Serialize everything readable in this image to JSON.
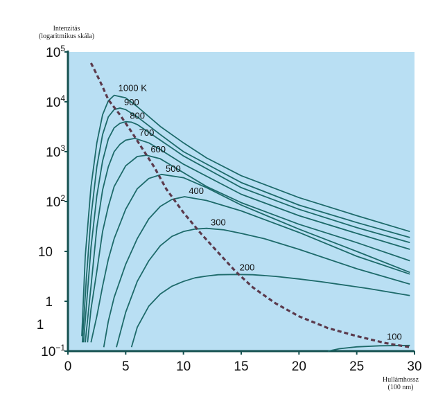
{
  "chart_data": {
    "type": "line",
    "ylabel_lines": [
      "Intenzitás",
      "(logaritmikus skála)"
    ],
    "xlabel_lines": [
      "Hullámhossz",
      "(100 nm)"
    ],
    "xlim": [
      0,
      30
    ],
    "ylim": [
      0.1,
      100000
    ],
    "yscale": "log",
    "grid": false,
    "x_ticks": [
      "0",
      "5",
      "10",
      "15",
      "20",
      "25",
      "30"
    ],
    "y_ticks": [
      {
        "value": 100000,
        "base": "10",
        "exp": "5"
      },
      {
        "value": 10000,
        "base": "10",
        "exp": "4"
      },
      {
        "value": 1000,
        "base": "10",
        "exp": "3"
      },
      {
        "value": 100,
        "base": "10",
        "exp": "2"
      },
      {
        "value": 10,
        "base": "10",
        "exp": ""
      },
      {
        "value": 1,
        "base": "1",
        "exp": ""
      },
      {
        "value": 0.1,
        "base": "10",
        "exp": "−1"
      }
    ],
    "stray_label": "1",
    "colors": {
      "plot_bg": "#b9dff3",
      "curve": "#1d6a6a",
      "peak_line": "#5b3a4c",
      "axis": "#14504f"
    },
    "series": [
      {
        "label": "1000 K",
        "points": [
          [
            1.2,
            0.2
          ],
          [
            1.5,
            8
          ],
          [
            2,
            200
          ],
          [
            2.5,
            1500
          ],
          [
            3,
            5500
          ],
          [
            3.5,
            10500
          ],
          [
            4,
            13500
          ],
          [
            5,
            12000
          ],
          [
            6,
            8000
          ],
          [
            8,
            3200
          ],
          [
            10,
            1500
          ],
          [
            12,
            750
          ],
          [
            15,
            330
          ],
          [
            20,
            120
          ],
          [
            25,
            52
          ],
          [
            29.6,
            25
          ]
        ]
      },
      {
        "label": "900",
        "points": [
          [
            1.25,
            0.15
          ],
          [
            1.6,
            3
          ],
          [
            2,
            50
          ],
          [
            2.5,
            500
          ],
          [
            3,
            2200
          ],
          [
            3.5,
            5000
          ],
          [
            4,
            7000
          ],
          [
            4.5,
            7500
          ],
          [
            5,
            7000
          ],
          [
            6,
            5000
          ],
          [
            8,
            2200
          ],
          [
            10,
            1000
          ],
          [
            15,
            240
          ],
          [
            20,
            85
          ],
          [
            25,
            38
          ],
          [
            29.6,
            19
          ]
        ]
      },
      {
        "label": "800",
        "points": [
          [
            1.35,
            0.15
          ],
          [
            2,
            12
          ],
          [
            2.5,
            130
          ],
          [
            3,
            650
          ],
          [
            3.5,
            1800
          ],
          [
            4,
            3000
          ],
          [
            4.5,
            3700
          ],
          [
            5,
            4000
          ],
          [
            5.5,
            3900
          ],
          [
            6,
            3500
          ],
          [
            8,
            1700
          ],
          [
            10,
            820
          ],
          [
            15,
            190
          ],
          [
            20,
            70
          ],
          [
            25,
            30
          ],
          [
            29.6,
            15
          ]
        ]
      },
      {
        "label": "700",
        "points": [
          [
            1.5,
            0.15
          ],
          [
            2,
            2
          ],
          [
            2.5,
            30
          ],
          [
            3,
            170
          ],
          [
            3.5,
            500
          ],
          [
            4,
            1000
          ],
          [
            4.5,
            1400
          ],
          [
            5,
            1700
          ],
          [
            5.8,
            1850
          ],
          [
            7,
            1500
          ],
          [
            8,
            1100
          ],
          [
            10,
            560
          ],
          [
            15,
            140
          ],
          [
            20,
            52
          ],
          [
            25,
            23
          ],
          [
            29.6,
            11
          ]
        ]
      },
      {
        "label": "600",
        "points": [
          [
            1.7,
            0.15
          ],
          [
            2,
            0.7
          ],
          [
            2.5,
            4
          ],
          [
            3,
            25
          ],
          [
            3.5,
            80
          ],
          [
            4,
            200
          ],
          [
            5,
            520
          ],
          [
            6,
            800
          ],
          [
            6.8,
            850
          ],
          [
            8,
            720
          ],
          [
            10,
            380
          ],
          [
            12,
            200
          ],
          [
            15,
            95
          ],
          [
            20,
            35
          ],
          [
            25,
            15
          ],
          [
            29.6,
            6.5
          ]
        ]
      },
      {
        "label": "500",
        "points": [
          [
            2,
            0.15
          ],
          [
            2.5,
            0.5
          ],
          [
            3,
            2
          ],
          [
            3.5,
            7
          ],
          [
            4,
            18
          ],
          [
            5,
            70
          ],
          [
            6,
            180
          ],
          [
            7,
            290
          ],
          [
            8.1,
            350
          ],
          [
            10,
            300
          ],
          [
            12,
            190
          ],
          [
            15,
            85
          ],
          [
            20,
            28
          ],
          [
            25,
            10
          ],
          [
            29.6,
            3.8
          ]
        ]
      },
      {
        "label": "400",
        "points": [
          [
            3.1,
            0.12
          ],
          [
            3.5,
            0.4
          ],
          [
            4,
            1.2
          ],
          [
            5,
            5.5
          ],
          [
            6,
            18
          ],
          [
            7,
            45
          ],
          [
            8,
            80
          ],
          [
            9,
            110
          ],
          [
            10.1,
            125
          ],
          [
            12,
            105
          ],
          [
            15,
            65
          ],
          [
            20,
            24
          ],
          [
            25,
            8
          ],
          [
            29.6,
            3.5
          ]
        ]
      },
      {
        "label": "300",
        "points": [
          [
            4.2,
            0.12
          ],
          [
            5,
            0.6
          ],
          [
            6,
            2.5
          ],
          [
            7,
            6.5
          ],
          [
            8,
            13
          ],
          [
            9,
            20
          ],
          [
            10,
            25
          ],
          [
            11,
            28
          ],
          [
            12,
            29
          ],
          [
            13.5,
            27
          ],
          [
            15,
            23
          ],
          [
            17,
            18
          ],
          [
            20,
            11
          ],
          [
            25,
            4.5
          ],
          [
            29.6,
            2.2
          ]
        ]
      },
      {
        "label": "200",
        "points": [
          [
            5.5,
            0.12
          ],
          [
            6,
            0.3
          ],
          [
            7,
            0.8
          ],
          [
            8,
            1.4
          ],
          [
            9,
            2
          ],
          [
            10,
            2.5
          ],
          [
            11,
            2.95
          ],
          [
            12,
            3.2
          ],
          [
            13,
            3.4
          ],
          [
            14.5,
            3.45
          ],
          [
            16,
            3.4
          ],
          [
            18,
            3.15
          ],
          [
            20,
            2.8
          ],
          [
            22,
            2.45
          ],
          [
            24,
            2.1
          ],
          [
            26,
            1.8
          ],
          [
            28,
            1.5
          ],
          [
            29.6,
            1.3
          ]
        ]
      },
      {
        "label": "100",
        "points": [
          [
            22.5,
            0.1
          ],
          [
            23.5,
            0.112
          ],
          [
            25,
            0.122
          ],
          [
            27,
            0.128
          ],
          [
            29.6,
            0.13
          ]
        ]
      }
    ],
    "peak_line": [
      [
        2,
        60000
      ],
      [
        2.5,
        35000
      ],
      [
        3,
        20000
      ],
      [
        3.5,
        11000
      ],
      [
        4.5,
        5500
      ],
      [
        5.5,
        2500
      ],
      [
        6.5,
        1100
      ],
      [
        7.5,
        480
      ],
      [
        8.5,
        180
      ],
      [
        10,
        60
      ],
      [
        11.5,
        23
      ],
      [
        13,
        9.5
      ],
      [
        14.5,
        4
      ],
      [
        16,
        1.9
      ],
      [
        18,
        0.9
      ],
      [
        20,
        0.5
      ],
      [
        22.5,
        0.29
      ],
      [
        25,
        0.2
      ],
      [
        27.5,
        0.145
      ],
      [
        29.6,
        0.12
      ]
    ]
  }
}
